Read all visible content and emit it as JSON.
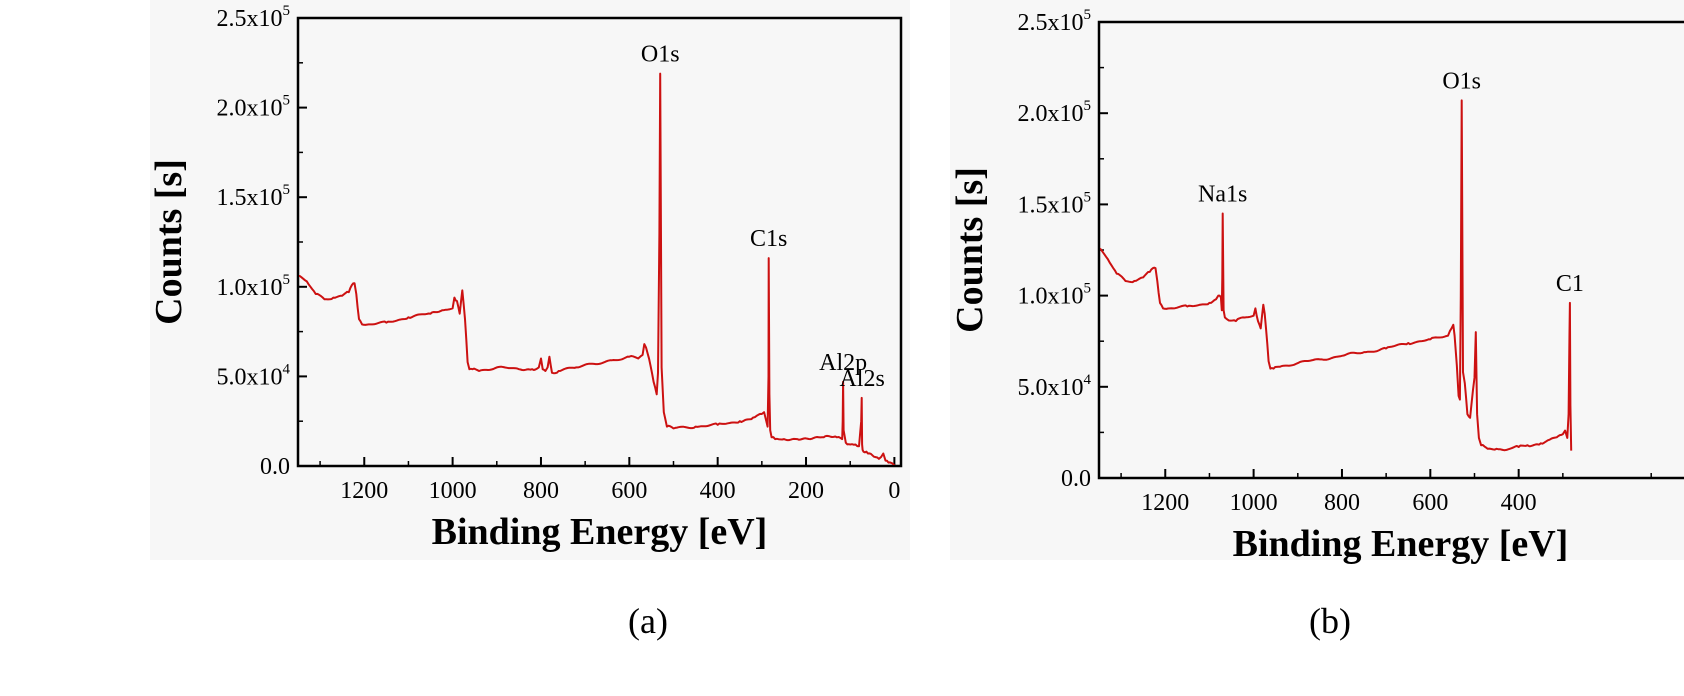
{
  "chart_data": [
    {
      "type": "line",
      "panel_label": "(a)",
      "xlabel": "Binding Energy [eV]",
      "ylabel": "Counts [s]",
      "xlim": [
        1350,
        -15
      ],
      "ylim": [
        0,
        250000
      ],
      "x_reversed": true,
      "x_ticks": [
        1200,
        1000,
        800,
        600,
        400,
        200,
        0
      ],
      "y_ticks": [
        0,
        50000,
        100000,
        150000,
        200000,
        250000
      ],
      "y_tick_mantissas": [
        "0.0",
        "5.0x10",
        "1.0x10",
        "1.5x10",
        "2.0x10",
        "2.5x10"
      ],
      "y_tick_exponents": [
        "",
        "4",
        "5",
        "5",
        "5",
        "5"
      ],
      "series_color": "#cc1111",
      "series": [
        {
          "x": [
            1350,
            1330,
            1310,
            1290,
            1270,
            1250,
            1235,
            1228,
            1222,
            1218,
            1212,
            1205,
            1190,
            1150,
            1100,
            1050,
            1020,
            1000,
            996,
            990,
            984,
            978,
            975,
            972,
            966,
            962,
            955,
            940,
            900,
            850,
            820,
            805,
            800,
            796,
            790,
            785,
            781,
            775,
            760,
            720,
            680,
            640,
            600,
            580,
            570,
            566,
            562,
            552,
            545,
            538,
            535,
            532,
            530,
            527,
            522,
            515,
            500,
            450,
            400,
            350,
            320,
            300,
            295,
            290,
            287,
            285,
            284.5,
            283,
            281,
            278,
            270,
            250,
            220,
            190,
            160,
            130,
            118,
            117,
            116,
            115,
            110,
            100,
            88,
            80,
            75,
            74,
            73,
            72,
            70,
            60,
            50,
            35,
            30,
            25,
            20,
            10,
            5,
            0
          ],
          "y": [
            106000,
            103000,
            96000,
            93000,
            94000,
            95000,
            97000,
            101000,
            102000,
            96000,
            82000,
            79000,
            79000,
            80000,
            83000,
            85000,
            87000,
            88000,
            94000,
            92000,
            85000,
            98000,
            90000,
            82000,
            58000,
            54000,
            54000,
            53000,
            55000,
            54000,
            54000,
            55000,
            60000,
            54000,
            53000,
            55000,
            61000,
            52000,
            53000,
            55000,
            57000,
            59000,
            61000,
            60000,
            62000,
            68000,
            66000,
            56000,
            47000,
            40000,
            52000,
            130000,
            219000,
            55000,
            30000,
            22000,
            21000,
            22000,
            23000,
            25000,
            27000,
            29000,
            30000,
            25000,
            22000,
            50000,
            116000,
            40000,
            20000,
            16000,
            15000,
            15000,
            15000,
            15000,
            16000,
            16000,
            15000,
            25000,
            47000,
            20000,
            13000,
            12000,
            12000,
            11000,
            25000,
            38000,
            12000,
            9000,
            8000,
            7000,
            6000,
            4000,
            5000,
            7000,
            3000,
            2000,
            1500,
            500
          ]
        }
      ],
      "annotations": [
        {
          "text": "O1s",
          "x": 530,
          "y": 219000
        },
        {
          "text": "C1s",
          "x": 284.5,
          "y": 116000
        },
        {
          "text": "Al2p",
          "x": 116,
          "y": 47000
        },
        {
          "text": "Al2s",
          "x": 73,
          "y": 38000
        }
      ]
    },
    {
      "type": "line",
      "panel_label": "(b)",
      "xlabel": "Binding Energy [eV]",
      "ylabel": "Counts [s]",
      "xlim": [
        1350,
        -15
      ],
      "ylim": [
        0,
        250000
      ],
      "x_reversed": true,
      "x_ticks": [
        1200,
        1000,
        800,
        600,
        400
      ],
      "y_ticks": [
        0,
        50000,
        100000,
        150000,
        200000,
        250000
      ],
      "y_tick_mantissas": [
        "0.0",
        "5.0x10",
        "1.0x10",
        "1.5x10",
        "2.0x10",
        "2.5x10"
      ],
      "y_tick_exponents": [
        "",
        "4",
        "5",
        "5",
        "5",
        "5"
      ],
      "series_color": "#cc1111",
      "series": [
        {
          "x": [
            1350,
            1330,
            1310,
            1290,
            1270,
            1250,
            1235,
            1228,
            1222,
            1218,
            1212,
            1205,
            1190,
            1150,
            1100,
            1085,
            1080,
            1074,
            1072,
            1071,
            1070,
            1068,
            1065,
            1060,
            1040,
            1020,
            1000,
            996,
            990,
            984,
            978,
            975,
            972,
            966,
            962,
            955,
            940,
            900,
            850,
            800,
            750,
            700,
            650,
            600,
            560,
            552,
            548,
            545,
            540,
            536,
            533,
            531,
            529,
            526,
            522,
            516,
            510,
            500,
            497,
            494,
            490,
            485,
            470,
            450,
            420,
            400,
            380,
            350,
            330,
            310,
            300,
            295,
            290,
            287,
            285,
            284,
            283,
            281
          ],
          "y": [
            126000,
            120000,
            112000,
            108000,
            108000,
            110000,
            113000,
            115000,
            115000,
            108000,
            96000,
            93000,
            93000,
            94000,
            96000,
            98000,
            100000,
            99000,
            92000,
            110000,
            145000,
            92000,
            88000,
            87000,
            86000,
            88000,
            89000,
            93000,
            86000,
            82000,
            95000,
            90000,
            82000,
            64000,
            60000,
            60000,
            61000,
            63000,
            65000,
            67000,
            69000,
            71000,
            74000,
            76000,
            78000,
            82000,
            84000,
            78000,
            62000,
            45000,
            43000,
            100000,
            207000,
            58000,
            52000,
            35000,
            33000,
            55000,
            80000,
            35000,
            22000,
            18000,
            16000,
            16000,
            16000,
            17000,
            18000,
            19000,
            21000,
            23000,
            24000,
            26000,
            22000,
            35000,
            80000,
            96000,
            40000,
            15000
          ]
        }
      ],
      "annotations": [
        {
          "text": "Na1s",
          "x": 1070,
          "y": 145000
        },
        {
          "text": "O1s",
          "x": 529,
          "y": 207000
        },
        {
          "text": "C1",
          "x": 284,
          "y": 96000
        }
      ]
    }
  ]
}
